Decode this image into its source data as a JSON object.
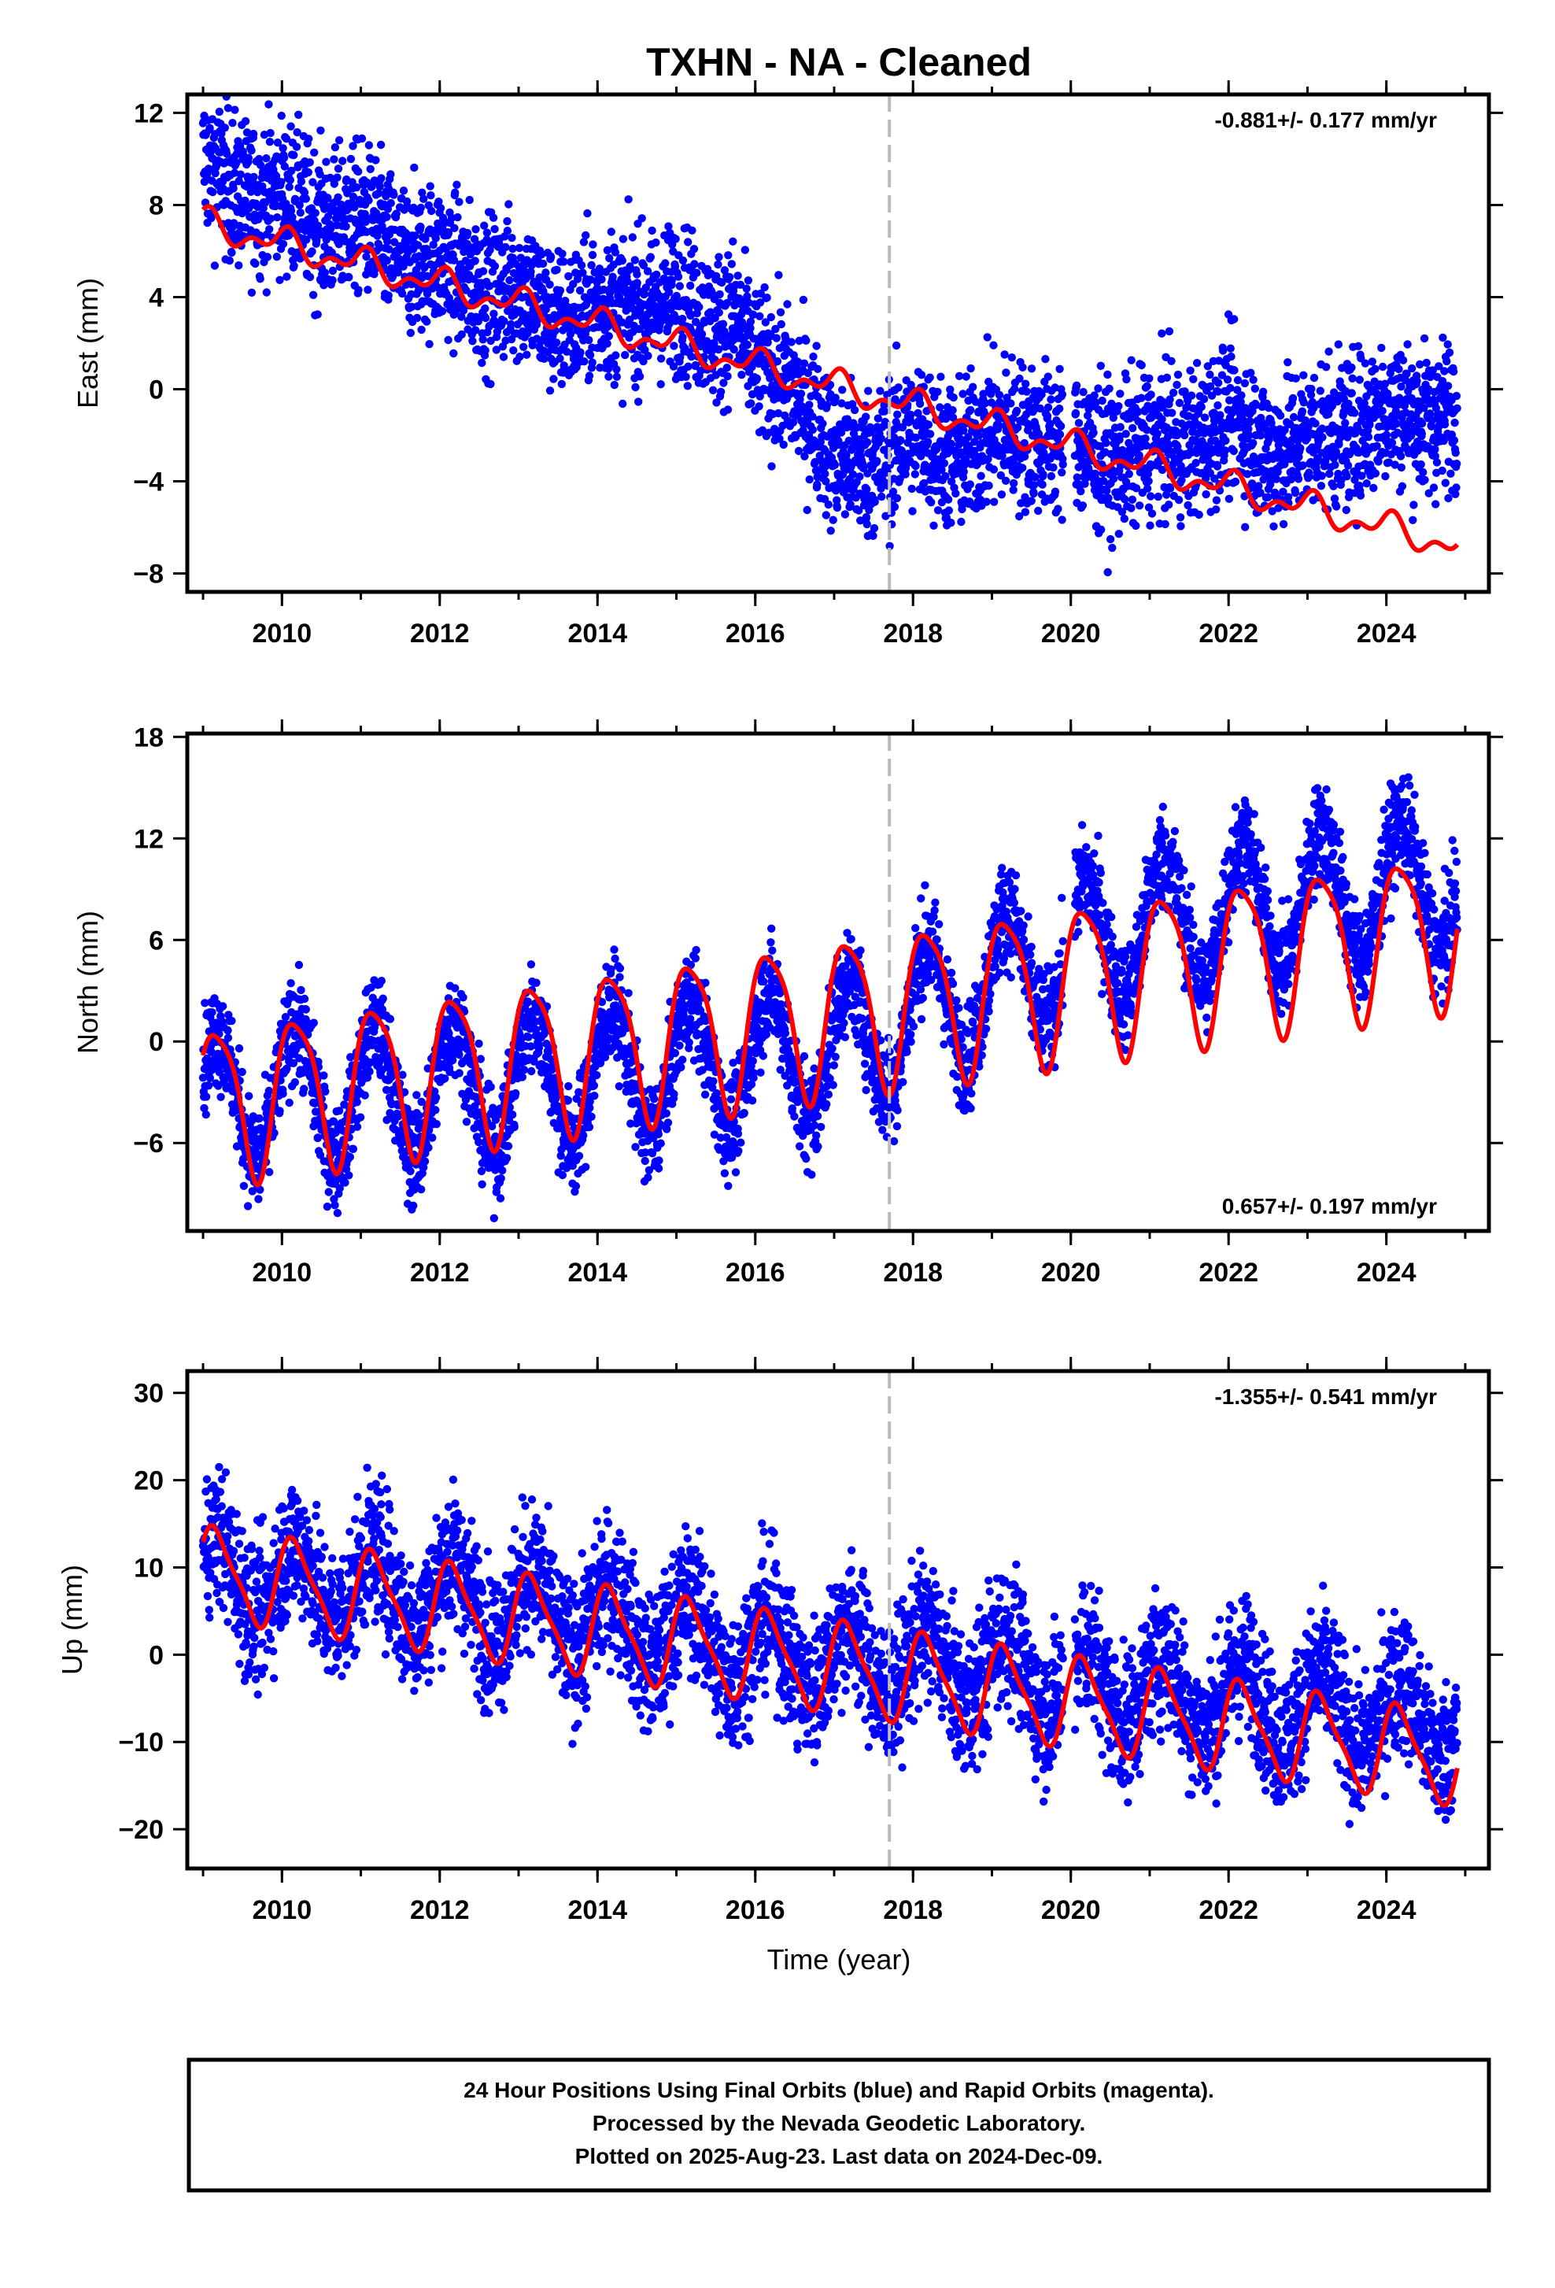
{
  "title": "TXHN  - NA - Cleaned",
  "xlabel": "Time (year)",
  "footer": {
    "line1": "24 Hour Positions Using Final Orbits (blue) and Rapid Orbits (magenta).",
    "line2": "Processed by the Nevada Geodetic Laboratory.",
    "line3": "Plotted on 2025-Aug-23. Last data on 2024-Dec-09."
  },
  "colors": {
    "data": "#0000ff",
    "fit": "#ff0000",
    "marker": "#bbbbbb"
  },
  "chart_data": [
    {
      "type": "scatter",
      "ylabel": "East (mm)",
      "rate": "-0.881+/- 0.177 mm/yr",
      "rate_position": "top-right",
      "xlim": [
        2008.8,
        2025.3
      ],
      "ylim": [
        -8.8,
        12.8
      ],
      "yticks": [
        -8,
        -4,
        0,
        4,
        8,
        12
      ],
      "xticks": [
        2010,
        2012,
        2014,
        2016,
        2018,
        2020,
        2022,
        2024
      ],
      "marker_year": 2017.7,
      "data_gap": [
        2019.9,
        2020.05
      ],
      "outline": {
        "x": [
          2009.0,
          2009.5,
          2010.0,
          2010.5,
          2011.0,
          2011.5,
          2012.0,
          2012.5,
          2013.0,
          2013.5,
          2014.0,
          2014.5,
          2015.0,
          2015.5,
          2015.7,
          2016.0,
          2016.5,
          2016.8,
          2017.0,
          2017.5,
          2018.0,
          2018.5,
          2019.0,
          2019.5,
          2020.0,
          2020.5,
          2021.0,
          2021.5,
          2022.0,
          2022.5,
          2023.0,
          2023.5,
          2024.0,
          2024.5,
          2024.9
        ],
        "y": [
          9.5,
          8.8,
          8.0,
          7.5,
          7.0,
          6.2,
          5.2,
          4.8,
          4.0,
          3.3,
          3.2,
          4.0,
          3.5,
          3.0,
          3.5,
          0.6,
          0.4,
          -1.5,
          -3.5,
          -2.8,
          -2.3,
          -2.6,
          -2.3,
          -1.6,
          -2.8,
          -2.7,
          -2.7,
          -2.0,
          -1.5,
          -2.4,
          -2.6,
          -1.5,
          -1.3,
          -1.0,
          -1.0
        ]
      },
      "spread": 1.6,
      "fit": {
        "rate": -0.881,
        "offset": 7.2,
        "t0": 2009.0,
        "annual_amplitude": 0.5,
        "annual_phase": 1.4,
        "semiannual_amplitude": 0.35,
        "semiannual_phase": 0.3
      }
    },
    {
      "type": "scatter",
      "ylabel": "North (mm)",
      "rate": "0.657+/- 0.197 mm/yr",
      "rate_position": "bottom-right",
      "xlim": [
        2008.8,
        2025.3
      ],
      "ylim": [
        -11.2,
        18.2
      ],
      "yticks": [
        -6,
        0,
        6,
        12,
        18
      ],
      "xticks": [
        2010,
        2012,
        2014,
        2016,
        2018,
        2020,
        2022,
        2024
      ],
      "marker_year": 2017.7,
      "data_gap": [
        2019.9,
        2020.05
      ],
      "outline": {
        "x": [
          2009.0,
          2010.0,
          2011.0,
          2012.0,
          2013.0,
          2014.0,
          2015.0,
          2016.0,
          2017.0,
          2018.0,
          2019.0,
          2020.0,
          2021.0,
          2022.0,
          2023.0,
          2024.0,
          2024.9
        ],
        "y": [
          -3.5,
          -3.0,
          -3.0,
          -2.8,
          -2.5,
          -2.0,
          -1.5,
          -1.0,
          -0.5,
          1.5,
          3.5,
          5.5,
          7.0,
          7.5,
          8.5,
          9.0,
          9.5
        ]
      },
      "spread": 1.5,
      "fit": {
        "rate": 0.657,
        "offset": -3.6,
        "t0": 2009.0,
        "annual_amplitude": 4.5,
        "annual_phase": 0.45,
        "semiannual_amplitude": 0.9,
        "semiannual_phase": 2.0
      }
    },
    {
      "type": "scatter",
      "ylabel": "Up (mm)",
      "rate": "-1.355+/- 0.541 mm/yr",
      "rate_position": "top-right",
      "xlim": [
        2008.8,
        2025.3
      ],
      "ylim": [
        -24.5,
        32.5
      ],
      "yticks": [
        -20,
        -10,
        0,
        10,
        20,
        30
      ],
      "xticks": [
        2010,
        2012,
        2014,
        2016,
        2018,
        2020,
        2022,
        2024
      ],
      "marker_year": 2017.7,
      "data_gap": [
        2019.9,
        2020.05
      ],
      "outline": {
        "x": [
          2009.0,
          2010.0,
          2011.0,
          2012.0,
          2013.0,
          2014.0,
          2015.0,
          2016.0,
          2017.0,
          2018.0,
          2019.0,
          2020.0,
          2021.0,
          2022.0,
          2023.0,
          2024.0,
          2024.9
        ],
        "y": [
          9.5,
          8.5,
          8.0,
          7.0,
          5.5,
          4.0,
          2.5,
          0.5,
          -0.5,
          -1.0,
          -1.5,
          -3.0,
          -4.0,
          -5.0,
          -6.0,
          -7.0,
          -7.5
        ]
      },
      "spread": 4.0,
      "fit": {
        "rate": -1.355,
        "offset": 9.5,
        "t0": 2009.0,
        "annual_amplitude": 5.0,
        "annual_phase": 0.5,
        "semiannual_amplitude": 1.2,
        "semiannual_phase": 1.0
      }
    }
  ]
}
